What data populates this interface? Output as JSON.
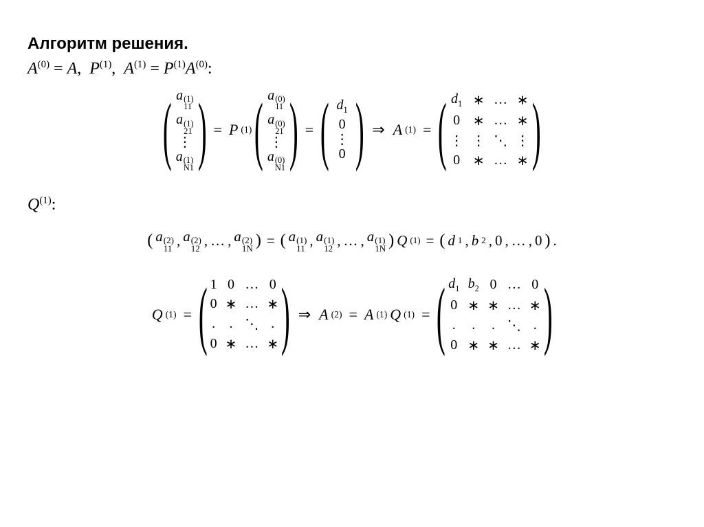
{
  "heading": "Алгоритм решения.",
  "line1": {
    "A0": "A",
    "sup0": "(0)",
    "eq": "=",
    "A": "A",
    "comma": ",",
    "P1": "P",
    "sup1": "(1)",
    "A1": "A",
    "sup1b": "(1)",
    "eq2": "=",
    "P1b": "P",
    "sup1c": "(1)",
    "A0b": "A",
    "sup0b": "(0)",
    "colon": ":"
  },
  "vec1": {
    "e1_base": "a",
    "e1_sup": "(1)",
    "e1_sub": "11",
    "e2_base": "a",
    "e2_sup": "(1)",
    "e2_sub": "21",
    "dots": "⋮",
    "eN_base": "a",
    "eN_sup": "(1)",
    "eN_sub": "N1"
  },
  "op1": {
    "eq": "=",
    "P": "P",
    "Psup": "(1)"
  },
  "vec0": {
    "e1_base": "a",
    "e1_sup": "(0)",
    "e1_sub": "11",
    "e2_base": "a",
    "e2_sup": "(0)",
    "e2_sub": "21",
    "dots": "⋮",
    "eN_base": "a",
    "eN_sup": "(0)",
    "eN_sub": "N1"
  },
  "op2": {
    "eq": "="
  },
  "vecd": {
    "d1": "d",
    "d1sub": "1",
    "z1": "0",
    "dots": "⋮",
    "z2": "0"
  },
  "impl1": {
    "arr": "⇒",
    "A": "A",
    "Asup": "(1)",
    "eq": "="
  },
  "matA1": {
    "r1c1": "d",
    "r1c1sub": "1",
    "r1c2": "∗",
    "r1c3": "…",
    "r1c4": "∗",
    "r2c1": "0",
    "r2c2": "∗",
    "r2c3": "…",
    "r2c4": "∗",
    "r3c1": "⋮",
    "r3c2": "⋮",
    "r3c3": "⋱",
    "r3c4": "⋮",
    "r4c1": "0",
    "r4c2": "∗",
    "r4c3": "…",
    "r4c4": "∗"
  },
  "Qline": {
    "Q": "Q",
    "Qsup": "(1)",
    "colon": ":"
  },
  "rowEq": {
    "open": "(",
    "a1_base": "a",
    "a1_sup": "(2)",
    "a1_sub": "11",
    "c1": ",",
    "a2_base": "a",
    "a2_sup": "(2)",
    "a2_sub": "12",
    "c2": ",",
    "dots1": "…",
    "c3": ",",
    "aN_base": "a",
    "aN_sup": "(2)",
    "aN_sub": "1N",
    "close": ")",
    "eq": "=",
    "open2": "(",
    "b1_base": "a",
    "b1_sup": "(1)",
    "b1_sub": "11",
    "c4": ",",
    "b2_base": "a",
    "b2_sup": "(1)",
    "b2_sub": "12",
    "c5": ",",
    "dots2": "…",
    "c6": ",",
    "bN_base": "a",
    "bN_sup": "(1)",
    "bN_sub": "1N",
    "close2": ")",
    "Q": "Q",
    "Qsup": "(1)",
    "eq2": "=",
    "open3": "(",
    "d": "d",
    "dsub": "1",
    "c7": ",",
    "b": "b",
    "bsub": "2",
    "c8": ",",
    "z1": "0",
    "c9": ",",
    "dots3": "…",
    "c10": ",",
    "z2": "0",
    "close3": ")",
    "period": "."
  },
  "Qeq": {
    "Q": "Q",
    "Qsup": "(1)",
    "eq": "="
  },
  "matQ": {
    "r1c1": "1",
    "r1c2": "0",
    "r1c3": "…",
    "r1c4": "0",
    "r2c1": "0",
    "r2c2": "∗",
    "r2c3": "…",
    "r2c4": "∗",
    "r3c1": ".",
    "r3c2": ".",
    "r3c3": "⋱",
    "r3c4": ".",
    "r4c1": "0",
    "r4c2": "∗",
    "r4c3": "…",
    "r4c4": "∗"
  },
  "impl2": {
    "arr": "⇒",
    "A": "A",
    "Asup": "(2)",
    "eq": "=",
    "A1": "A",
    "A1sup": "(1)",
    "Q": "Q",
    "Qsup": "(1)",
    "eq2": "="
  },
  "matA2": {
    "r1c1": "d",
    "r1c1sub": "1",
    "r1c2": "b",
    "r1c2sub": "2",
    "r1c3": "0",
    "r1c4": "…",
    "r1c5": "0",
    "r2c1": "0",
    "r2c2": "∗",
    "r2c3": "∗",
    "r2c4": "…",
    "r2c5": "∗",
    "r3c1": ".",
    "r3c2": ".",
    "r3c3": ".",
    "r3c4": "⋱",
    "r3c5": ".",
    "r4c1": "0",
    "r4c2": "∗",
    "r4c3": "∗",
    "r4c4": "…",
    "r4c5": "∗"
  }
}
